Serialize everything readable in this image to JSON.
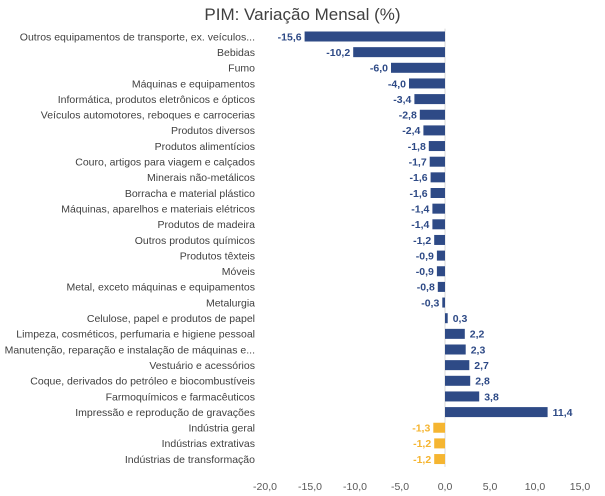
{
  "chart_data": {
    "type": "bar",
    "orientation": "horizontal",
    "title": "PIM: Variação Mensal (%)",
    "xlim": [
      -20,
      15
    ],
    "x_ticks": [
      -20,
      -15,
      -10,
      -5,
      0,
      5,
      10,
      15
    ],
    "x_tick_labels": [
      "-20,0",
      "-15,0",
      "-10,0",
      "-5,0",
      "0,0",
      "5,0",
      "10,0",
      "15,0"
    ],
    "grid": false,
    "legend": "none",
    "colors": {
      "sector": "#2E4A86",
      "aggregate": "#F5B531"
    },
    "categories": [
      "Outros equipamentos de transporte, ex. veículos...",
      "Bebidas",
      "Fumo",
      "Máquinas e equipamentos",
      "Informática, produtos eletrônicos e ópticos",
      "Veículos automotores, reboques e carrocerias",
      "Produtos diversos",
      "Produtos alimentícios",
      "Couro, artigos para viagem e calçados",
      "Minerais não-metálicos",
      "Borracha e material plástico",
      "Máquinas, aparelhos e materiais elétricos",
      "Produtos de madeira",
      "Outros produtos químicos",
      "Produtos têxteis",
      "Móveis",
      "Metal, exceto máquinas e equipamentos",
      "Metalurgia",
      "Celulose, papel e produtos de papel",
      "Limpeza, cosméticos, perfumaria e higiene pessoal",
      "Manutenção, reparação e instalação de máquinas e...",
      "Vestuário e acessórios",
      "Coque, derivados do petróleo e biocombustíveis",
      "Farmoquímicos e farmacêuticos",
      "Impressão e reprodução de gravações",
      "Indústria geral",
      "Indústrias extrativas",
      "Indústrias de transformação"
    ],
    "values": [
      -15.6,
      -10.2,
      -6.0,
      -4.0,
      -3.4,
      -2.8,
      -2.4,
      -1.8,
      -1.7,
      -1.6,
      -1.6,
      -1.4,
      -1.4,
      -1.2,
      -0.9,
      -0.9,
      -0.8,
      -0.3,
      0.3,
      2.2,
      2.3,
      2.7,
      2.8,
      3.8,
      11.4,
      -1.3,
      -1.2,
      -1.2
    ],
    "value_labels": [
      "-15,6",
      "-10,2",
      "-6,0",
      "-4,0",
      "-3,4",
      "-2,8",
      "-2,4",
      "-1,8",
      "-1,7",
      "-1,6",
      "-1,6",
      "-1,4",
      "-1,4",
      "-1,2",
      "-0,9",
      "-0,9",
      "-0,8",
      "-0,3",
      "0,3",
      "2,2",
      "2,3",
      "2,7",
      "2,8",
      "3,8",
      "11,4",
      "-1,3",
      "-1,2",
      "-1,2"
    ],
    "group": [
      "sector",
      "sector",
      "sector",
      "sector",
      "sector",
      "sector",
      "sector",
      "sector",
      "sector",
      "sector",
      "sector",
      "sector",
      "sector",
      "sector",
      "sector",
      "sector",
      "sector",
      "sector",
      "sector",
      "sector",
      "sector",
      "sector",
      "sector",
      "sector",
      "sector",
      "aggregate",
      "aggregate",
      "aggregate"
    ]
  }
}
